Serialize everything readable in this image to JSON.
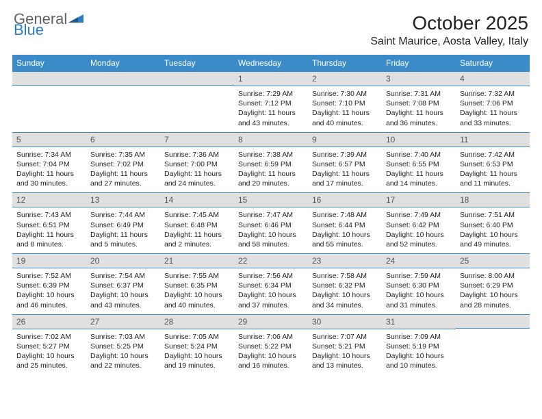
{
  "logo": {
    "general": "General",
    "blue": "Blue"
  },
  "title": "October 2025",
  "location": "Saint Maurice, Aosta Valley, Italy",
  "header_bg": "#3b8bc9",
  "daynum_bg": "#e0e0e0",
  "days_of_week": [
    "Sunday",
    "Monday",
    "Tuesday",
    "Wednesday",
    "Thursday",
    "Friday",
    "Saturday"
  ],
  "weeks": [
    [
      null,
      null,
      null,
      {
        "n": "1",
        "sr": "7:29 AM",
        "ss": "7:12 PM",
        "dl": "11 hours and 43 minutes."
      },
      {
        "n": "2",
        "sr": "7:30 AM",
        "ss": "7:10 PM",
        "dl": "11 hours and 40 minutes."
      },
      {
        "n": "3",
        "sr": "7:31 AM",
        "ss": "7:08 PM",
        "dl": "11 hours and 36 minutes."
      },
      {
        "n": "4",
        "sr": "7:32 AM",
        "ss": "7:06 PM",
        "dl": "11 hours and 33 minutes."
      }
    ],
    [
      {
        "n": "5",
        "sr": "7:34 AM",
        "ss": "7:04 PM",
        "dl": "11 hours and 30 minutes."
      },
      {
        "n": "6",
        "sr": "7:35 AM",
        "ss": "7:02 PM",
        "dl": "11 hours and 27 minutes."
      },
      {
        "n": "7",
        "sr": "7:36 AM",
        "ss": "7:00 PM",
        "dl": "11 hours and 24 minutes."
      },
      {
        "n": "8",
        "sr": "7:38 AM",
        "ss": "6:59 PM",
        "dl": "11 hours and 20 minutes."
      },
      {
        "n": "9",
        "sr": "7:39 AM",
        "ss": "6:57 PM",
        "dl": "11 hours and 17 minutes."
      },
      {
        "n": "10",
        "sr": "7:40 AM",
        "ss": "6:55 PM",
        "dl": "11 hours and 14 minutes."
      },
      {
        "n": "11",
        "sr": "7:42 AM",
        "ss": "6:53 PM",
        "dl": "11 hours and 11 minutes."
      }
    ],
    [
      {
        "n": "12",
        "sr": "7:43 AM",
        "ss": "6:51 PM",
        "dl": "11 hours and 8 minutes."
      },
      {
        "n": "13",
        "sr": "7:44 AM",
        "ss": "6:49 PM",
        "dl": "11 hours and 5 minutes."
      },
      {
        "n": "14",
        "sr": "7:45 AM",
        "ss": "6:48 PM",
        "dl": "11 hours and 2 minutes."
      },
      {
        "n": "15",
        "sr": "7:47 AM",
        "ss": "6:46 PM",
        "dl": "10 hours and 58 minutes."
      },
      {
        "n": "16",
        "sr": "7:48 AM",
        "ss": "6:44 PM",
        "dl": "10 hours and 55 minutes."
      },
      {
        "n": "17",
        "sr": "7:49 AM",
        "ss": "6:42 PM",
        "dl": "10 hours and 52 minutes."
      },
      {
        "n": "18",
        "sr": "7:51 AM",
        "ss": "6:40 PM",
        "dl": "10 hours and 49 minutes."
      }
    ],
    [
      {
        "n": "19",
        "sr": "7:52 AM",
        "ss": "6:39 PM",
        "dl": "10 hours and 46 minutes."
      },
      {
        "n": "20",
        "sr": "7:54 AM",
        "ss": "6:37 PM",
        "dl": "10 hours and 43 minutes."
      },
      {
        "n": "21",
        "sr": "7:55 AM",
        "ss": "6:35 PM",
        "dl": "10 hours and 40 minutes."
      },
      {
        "n": "22",
        "sr": "7:56 AM",
        "ss": "6:34 PM",
        "dl": "10 hours and 37 minutes."
      },
      {
        "n": "23",
        "sr": "7:58 AM",
        "ss": "6:32 PM",
        "dl": "10 hours and 34 minutes."
      },
      {
        "n": "24",
        "sr": "7:59 AM",
        "ss": "6:30 PM",
        "dl": "10 hours and 31 minutes."
      },
      {
        "n": "25",
        "sr": "8:00 AM",
        "ss": "6:29 PM",
        "dl": "10 hours and 28 minutes."
      }
    ],
    [
      {
        "n": "26",
        "sr": "7:02 AM",
        "ss": "5:27 PM",
        "dl": "10 hours and 25 minutes."
      },
      {
        "n": "27",
        "sr": "7:03 AM",
        "ss": "5:25 PM",
        "dl": "10 hours and 22 minutes."
      },
      {
        "n": "28",
        "sr": "7:05 AM",
        "ss": "5:24 PM",
        "dl": "10 hours and 19 minutes."
      },
      {
        "n": "29",
        "sr": "7:06 AM",
        "ss": "5:22 PM",
        "dl": "10 hours and 16 minutes."
      },
      {
        "n": "30",
        "sr": "7:07 AM",
        "ss": "5:21 PM",
        "dl": "10 hours and 13 minutes."
      },
      {
        "n": "31",
        "sr": "7:09 AM",
        "ss": "5:19 PM",
        "dl": "10 hours and 10 minutes."
      },
      null
    ]
  ],
  "labels": {
    "sunrise": "Sunrise:",
    "sunset": "Sunset:",
    "daylight": "Daylight:"
  }
}
